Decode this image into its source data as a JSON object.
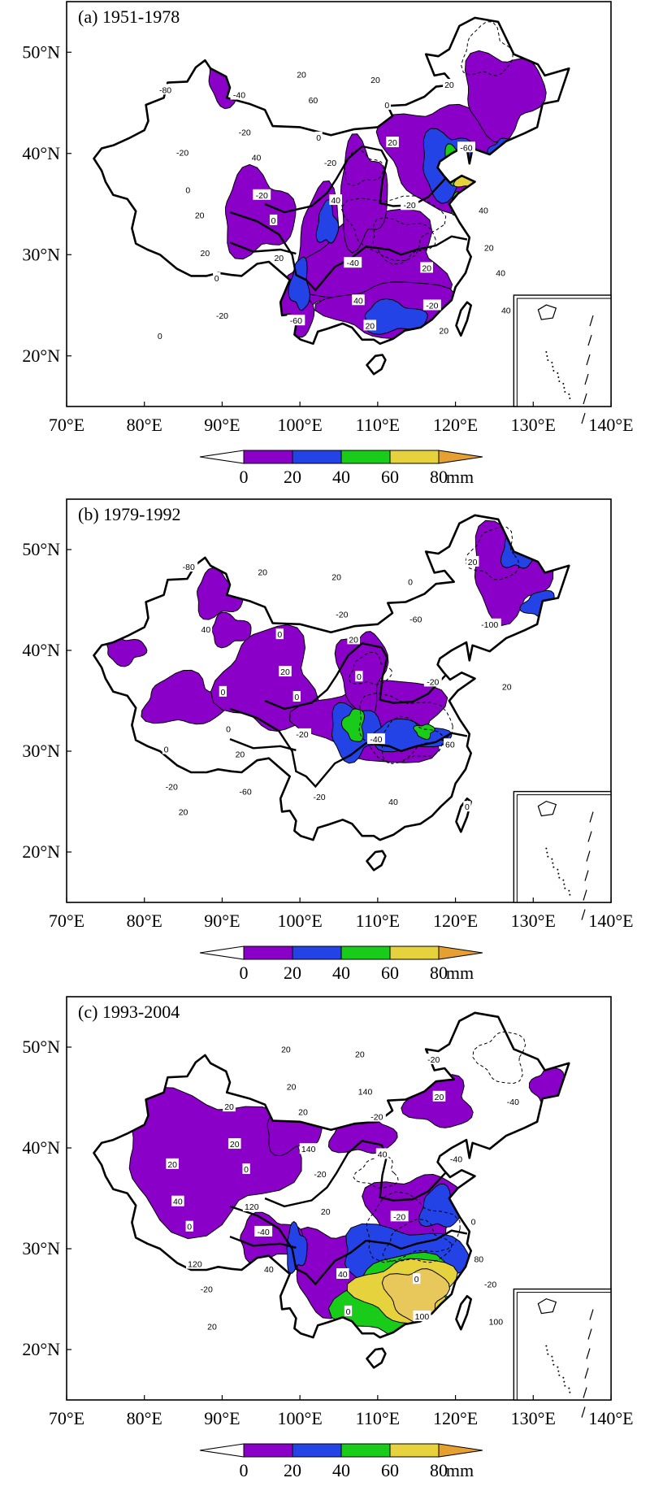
{
  "colors": {
    "c0_20": "#8a00c8",
    "c20_40": "#2443e6",
    "c40_60": "#19cc19",
    "c60_80": "#e6d23c",
    "c80_up": "#e6a030",
    "c100_up": "#e8c85a"
  },
  "axes": {
    "lat_ticks": [
      "20°N",
      "30°N",
      "40°N",
      "50°N"
    ],
    "lon_ticks": [
      "70°E",
      "80°E",
      "90°E",
      "100°E",
      "110°E",
      "120°E",
      "130°E",
      "140°E"
    ]
  },
  "colorbar": {
    "ticks": [
      "0",
      "20",
      "40",
      "60",
      "80"
    ],
    "unit": "mm"
  },
  "panels": [
    {
      "title": "(a)  1951-1978",
      "labels": [
        "0",
        "0",
        "0",
        "-20",
        "0",
        "20",
        "40",
        "20",
        "40",
        "60",
        "20",
        "20",
        "40",
        "-20",
        "-40",
        "-60",
        "-40",
        "-20",
        "-60",
        "-80",
        "-20",
        "20",
        "40",
        "20",
        "20",
        "40",
        "20",
        "-20",
        "0",
        "20",
        "-20",
        "20",
        "0",
        "-20",
        "20",
        "40"
      ]
    },
    {
      "title": "(b)  1979-1992",
      "labels": [
        "20",
        "20",
        "0",
        "20",
        "0",
        "0",
        "0",
        "0",
        "0",
        "20",
        "40",
        "60",
        "20",
        "40",
        "20",
        "-20",
        "-40",
        "-20",
        "-100",
        "-80",
        "-60",
        "-20",
        "0",
        "-60",
        "20",
        "-20",
        "0",
        "20",
        "-20"
      ]
    },
    {
      "title": "(c)  1993-2004",
      "labels": [
        "-20",
        "-40",
        "-20",
        "-20",
        "-20",
        "-20",
        "0",
        "0",
        "20",
        "20",
        "0",
        "0",
        "20",
        "20",
        "20",
        "40",
        "-20",
        "-40",
        "-40",
        "20",
        "40",
        "20",
        "40",
        "20",
        "100",
        "120",
        "120",
        "140",
        "140",
        "100",
        "80",
        "40",
        "20",
        "20",
        "0"
      ]
    }
  ]
}
